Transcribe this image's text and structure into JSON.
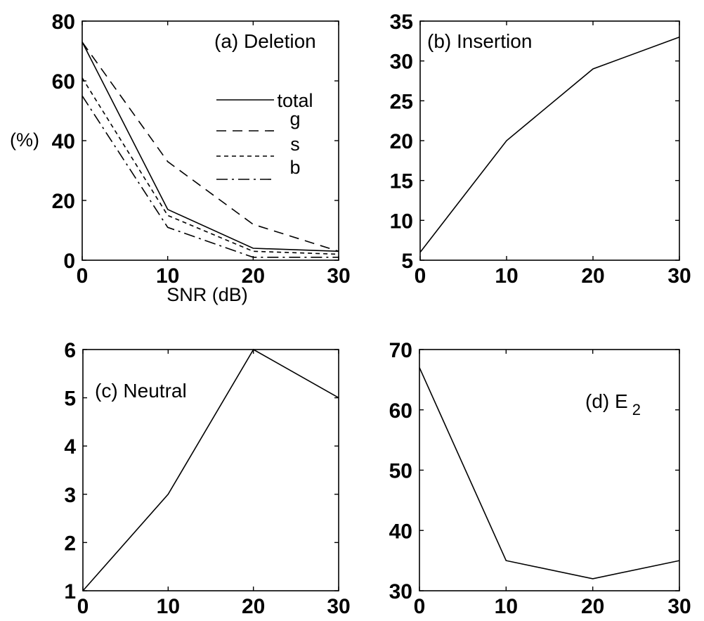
{
  "chart_data": [
    {
      "type": "line",
      "title": "(a) Deletion",
      "xlabel": "SNR (dB)",
      "ylabel": "(%)",
      "xlim": [
        0,
        30
      ],
      "ylim": [
        0,
        80
      ],
      "xticks": [
        0,
        10,
        20,
        30
      ],
      "yticks": [
        0,
        20,
        40,
        60,
        80
      ],
      "x": [
        0,
        10,
        20,
        30
      ],
      "legend_position": "upper-right",
      "series": [
        {
          "name": "total",
          "values": [
            73,
            17,
            4,
            3
          ],
          "dash": "solid"
        },
        {
          "name": "g",
          "values": [
            73,
            33,
            12,
            3
          ],
          "dash": "long"
        },
        {
          "name": "s",
          "values": [
            61,
            15,
            3,
            2
          ],
          "dash": "short"
        },
        {
          "name": "b",
          "values": [
            55,
            11,
            1,
            1
          ],
          "dash": "dashdot"
        }
      ]
    },
    {
      "type": "line",
      "title": "(b) Insertion",
      "xlabel": "",
      "ylabel": "",
      "xlim": [
        0,
        30
      ],
      "ylim": [
        5,
        35
      ],
      "xticks": [
        0,
        10,
        20,
        30
      ],
      "yticks": [
        5,
        10,
        15,
        20,
        25,
        30,
        35
      ],
      "x": [
        0,
        10,
        20,
        30
      ],
      "series": [
        {
          "values": [
            6,
            20,
            29,
            33
          ],
          "dash": "solid"
        }
      ]
    },
    {
      "type": "line",
      "title": "(c) Neutral",
      "xlabel": "",
      "ylabel": "",
      "xlim": [
        0,
        30
      ],
      "ylim": [
        1,
        6
      ],
      "xticks": [
        0,
        10,
        20,
        30
      ],
      "yticks": [
        1,
        2,
        3,
        4,
        5,
        6
      ],
      "x": [
        0,
        10,
        20,
        30
      ],
      "series": [
        {
          "values": [
            1,
            3,
            6,
            5
          ],
          "dash": "solid"
        }
      ]
    },
    {
      "type": "line",
      "title": "(d) E",
      "title_sub": "2",
      "xlabel": "",
      "ylabel": "",
      "xlim": [
        0,
        30
      ],
      "ylim": [
        30,
        70
      ],
      "xticks": [
        0,
        10,
        20,
        30
      ],
      "yticks": [
        30,
        40,
        50,
        60,
        70
      ],
      "x": [
        0,
        10,
        20,
        30
      ],
      "series": [
        {
          "values": [
            67,
            35,
            32,
            35
          ],
          "dash": "solid"
        }
      ]
    }
  ]
}
